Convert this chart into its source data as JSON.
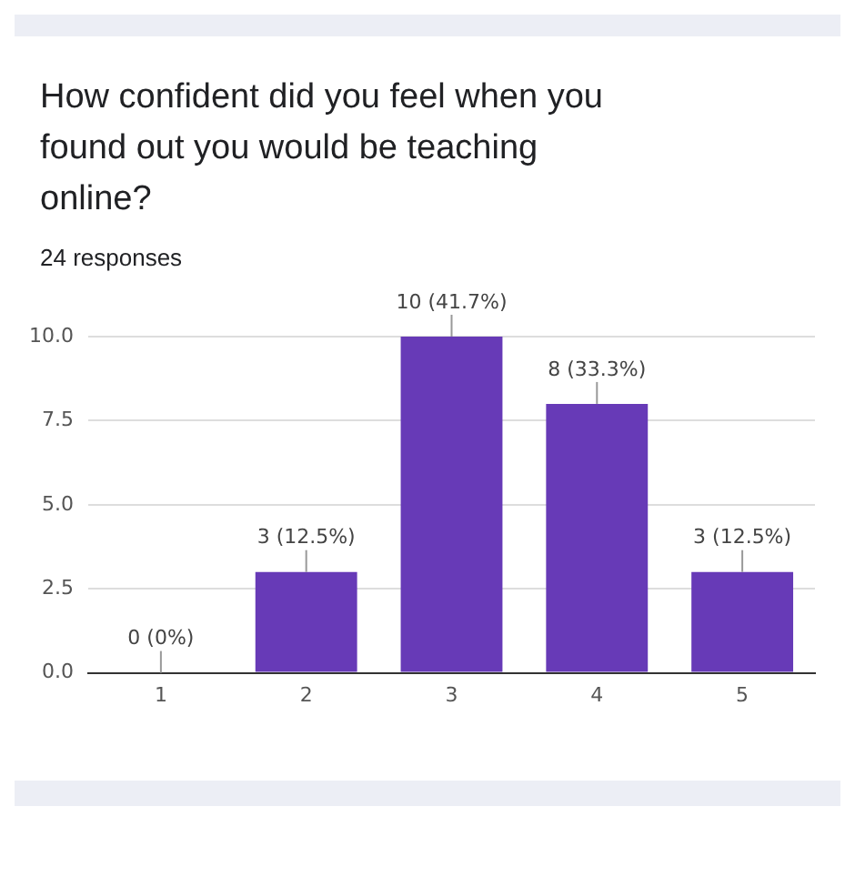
{
  "chart_data": {
    "type": "bar",
    "title": "How confident did you feel when you found out you would be teaching online?",
    "subtitle": "24 responses",
    "categories": [
      "1",
      "2",
      "3",
      "4",
      "5"
    ],
    "values": [
      0,
      3,
      10,
      8,
      3
    ],
    "color": "#673ab7",
    "value_labels": [
      "0 (0%)",
      "3 (12.5%)",
      "10 (41.7%)",
      "8 (33.3%)",
      "3 (12.5%)"
    ],
    "ylim": [
      0,
      10
    ],
    "yticks": [
      {
        "value": 0,
        "label": "0.0"
      },
      {
        "value": 2.5,
        "label": "2.5"
      },
      {
        "value": 5,
        "label": "5.0"
      },
      {
        "value": 7.5,
        "label": "7.5"
      },
      {
        "value": 10,
        "label": "10.0"
      }
    ],
    "grid": "y"
  }
}
